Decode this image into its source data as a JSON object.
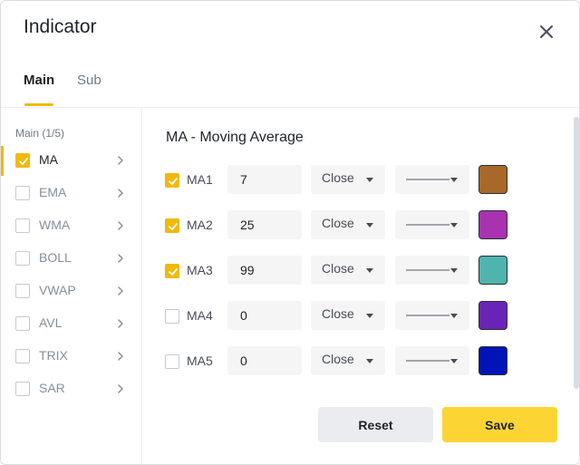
{
  "dialog": {
    "title": "Indicator",
    "close_icon": "close-icon"
  },
  "tabs": [
    {
      "label": "Main",
      "active": true
    },
    {
      "label": "Sub",
      "active": false
    }
  ],
  "sidebar": {
    "heading": "Main (1/5)",
    "items": [
      {
        "label": "MA",
        "checked": true,
        "active": true
      },
      {
        "label": "EMA",
        "checked": false,
        "active": false
      },
      {
        "label": "WMA",
        "checked": false,
        "active": false
      },
      {
        "label": "BOLL",
        "checked": false,
        "active": false
      },
      {
        "label": "VWAP",
        "checked": false,
        "active": false
      },
      {
        "label": "AVL",
        "checked": false,
        "active": false
      },
      {
        "label": "TRIX",
        "checked": false,
        "active": false
      },
      {
        "label": "SAR",
        "checked": false,
        "active": false
      }
    ]
  },
  "panel": {
    "title": "MA - Moving Average",
    "rows": [
      {
        "label": "MA1",
        "checked": true,
        "period": "7",
        "source": "Close",
        "color": "#A8682A"
      },
      {
        "label": "MA2",
        "checked": true,
        "period": "25",
        "source": "Close",
        "color": "#A832B0"
      },
      {
        "label": "MA3",
        "checked": true,
        "period": "99",
        "source": "Close",
        "color": "#4FB3AE"
      },
      {
        "label": "MA4",
        "checked": false,
        "period": "0",
        "source": "Close",
        "color": "#6A24B5"
      },
      {
        "label": "MA5",
        "checked": false,
        "period": "0",
        "source": "Close",
        "color": "#0014B8"
      }
    ]
  },
  "footer": {
    "reset_label": "Reset",
    "save_label": "Save"
  },
  "colors": {
    "accent": "#F0B90B",
    "primary_button": "#FCD535",
    "secondary_button": "#EAECEF"
  }
}
